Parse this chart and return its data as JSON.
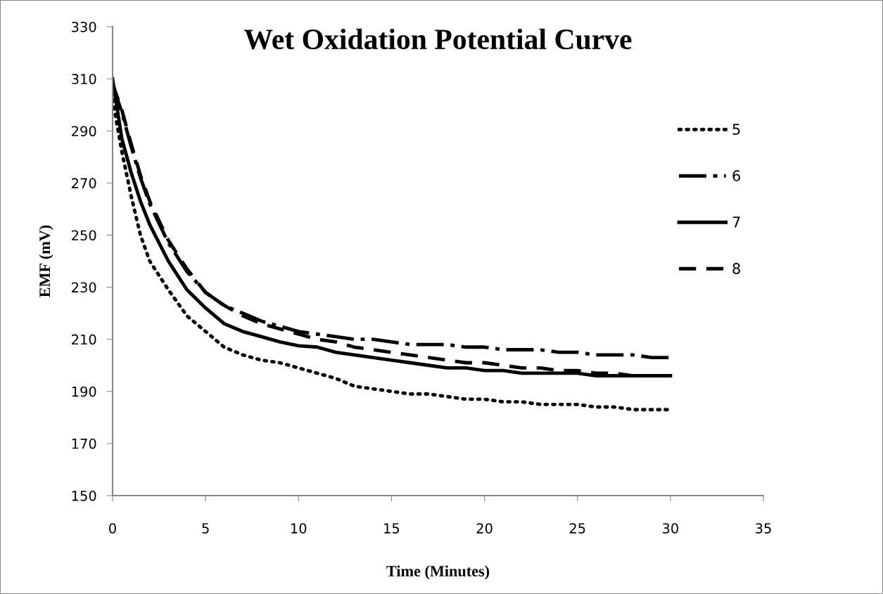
{
  "chart_data": {
    "type": "line",
    "title": "Wet Oxidation Potential Curve",
    "xlabel": "Time (Minutes)",
    "ylabel": "EMF (mV)",
    "x": [
      0,
      0.5,
      1,
      1.5,
      2,
      3,
      4,
      5,
      6,
      7,
      8,
      9,
      10,
      11,
      12,
      13,
      14,
      15,
      16,
      17,
      18,
      19,
      20,
      21,
      22,
      23,
      24,
      25,
      26,
      27,
      28,
      29,
      30
    ],
    "series": [
      {
        "name": "5",
        "color": "#000000",
        "line_style": "dotted",
        "values": [
          302,
          282,
          265,
          250,
          240,
          229,
          219,
          213,
          207,
          204,
          202,
          201,
          199,
          197,
          195,
          192,
          191,
          190,
          189,
          189,
          188,
          187,
          187,
          186,
          186,
          185,
          185,
          185,
          184,
          184,
          183,
          183,
          183
        ]
      },
      {
        "name": "6",
        "color": "#000000",
        "line_style": "dashdot",
        "values": [
          308,
          297,
          284,
          272,
          262,
          247,
          236,
          228,
          223,
          220,
          217,
          215,
          213,
          212,
          211,
          210,
          210,
          209,
          208,
          208,
          208,
          207,
          207,
          206,
          206,
          206,
          205,
          205,
          204,
          204,
          204,
          203,
          203
        ]
      },
      {
        "name": "7",
        "color": "#000000",
        "line_style": "solid",
        "values": [
          310,
          287,
          274,
          263,
          254,
          240,
          229,
          222,
          216,
          213,
          211,
          209,
          207.5,
          207,
          205,
          204,
          203,
          202,
          201,
          200,
          199,
          199,
          198,
          198,
          197,
          197,
          197,
          197,
          196,
          196,
          196,
          196,
          196
        ]
      },
      {
        "name": "8",
        "color": "#000000",
        "line_style": "dashed",
        "values": [
          308,
          298,
          285,
          273,
          263,
          248,
          237,
          228,
          223,
          219,
          216,
          214,
          212,
          210,
          209,
          207,
          206,
          205,
          204,
          203,
          202,
          201,
          201,
          200,
          199,
          199,
          198,
          198,
          197,
          197,
          196,
          196,
          196
        ]
      }
    ],
    "xlim": [
      0,
      35
    ],
    "xticks": [
      0,
      5,
      10,
      15,
      20,
      25,
      30,
      35
    ],
    "ylim": [
      150,
      330
    ],
    "yticks": [
      150,
      170,
      190,
      210,
      230,
      250,
      270,
      290,
      310,
      330
    ],
    "grid": false,
    "legend": "right",
    "marker": "none"
  }
}
